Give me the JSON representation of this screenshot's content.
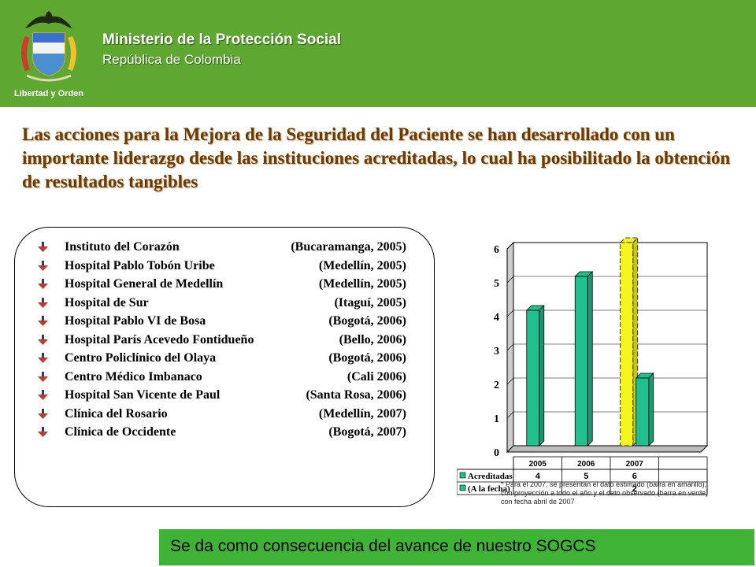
{
  "header": {
    "ministry": "Ministerio de la Protección Social",
    "republic": "República de Colombia",
    "motto": "Libertad y Orden",
    "logo_icon": "colombia-coat-of-arms-icon",
    "background_color": "#5ea832"
  },
  "headline": "Las acciones para la Mejora de la Seguridad del Paciente se han desarrollado con un importante liderazgo desde las instituciones acreditadas, lo cual ha posibilitado la obtención de resultados tangibles",
  "institutions": [
    {
      "name": "Instituto del Corazón",
      "place": "(Bucaramanga, 2005)"
    },
    {
      "name": "Hospital Pablo Tobón Uribe",
      "place": "(Medellín, 2005)"
    },
    {
      "name": "Hospital General de Medellín",
      "place": "(Medellín, 2005)"
    },
    {
      "name": "Hospital de Sur",
      "place": "(Itaguí, 2005)"
    },
    {
      "name": "Hospital Pablo VI de Bosa",
      "place": "(Bogotá, 2006)"
    },
    {
      "name": "Hospital París Acevedo Fontidueño",
      "place": "(Bello, 2006)"
    },
    {
      "name": "Centro Policlínico del Olaya",
      "place": "(Bogotá, 2006)"
    },
    {
      "name": "Centro Médico Imbanaco",
      "place": "(Cali 2006)"
    },
    {
      "name": "Hospital San Vicente de Paul",
      "place": "(Santa Rosa, 2006)"
    },
    {
      "name": "Clínica del Rosario",
      "place": "(Medellín, 2007)"
    },
    {
      "name": "Clínica de Occidente",
      "place": "(Bogotá, 2007)"
    }
  ],
  "bullet_icon": "arrow-bullet-icon",
  "chart_data": {
    "type": "bar",
    "categories": [
      "2005",
      "2006",
      "2007"
    ],
    "series": [
      {
        "name": "Acreditadas",
        "values": [
          4,
          5,
          6
        ],
        "color": "#20c090",
        "estimated_color": "#f5f520"
      },
      {
        "name": "(A la fecha)",
        "values": [
          null,
          null,
          2
        ],
        "color": "#20c090"
      }
    ],
    "ylim": [
      0,
      6
    ],
    "yticks": [
      0,
      1,
      2,
      3,
      4,
      5,
      6
    ],
    "grid": true,
    "legend": "bottom (data table)",
    "table": [
      [
        "4",
        "5",
        "6"
      ],
      [
        "",
        "",
        "2"
      ]
    ]
  },
  "footnote": "* Para el 2007, se presentan el dato estimado (barra en amarillo), con proyección a todo el año y el dato observado (barra en verde) con fecha abril de 2007",
  "banner": {
    "text": "Se da como consecuencia del avance de nuestro SOGCS",
    "color": "#3fb336"
  }
}
